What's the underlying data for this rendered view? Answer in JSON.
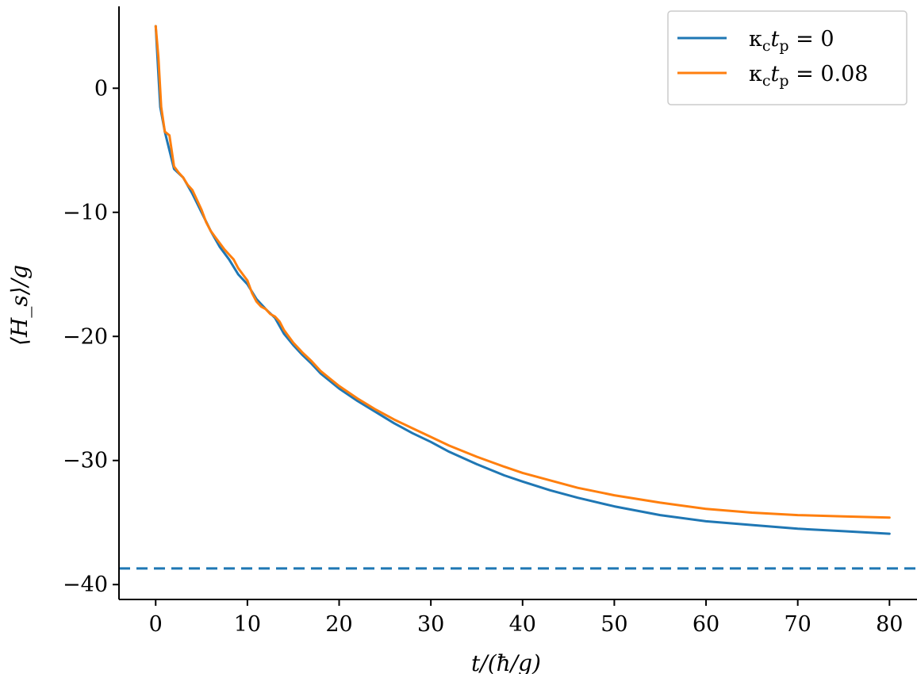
{
  "chart_data": {
    "type": "line",
    "xlabel": "t/(ħ/g)",
    "ylabel": "⟨H_s⟩/g",
    "xlim": [
      -4,
      83
    ],
    "ylim": [
      -41.2,
      6.6
    ],
    "x_ticks": [
      0,
      10,
      20,
      30,
      40,
      50,
      60,
      70,
      80
    ],
    "x_tick_labels": [
      "0",
      "10",
      "20",
      "30",
      "40",
      "50",
      "60",
      "70",
      "80"
    ],
    "y_ticks": [
      0,
      -10,
      -20,
      -30,
      -40
    ],
    "y_tick_labels": [
      "0",
      "−10",
      "−20",
      "−30",
      "−40"
    ],
    "grid": false,
    "legend_position": "top-right",
    "series": [
      {
        "name": "κ_c t_p = 0",
        "name_parts": {
          "prefix": "κ",
          "sub1": "c",
          "mid": "t",
          "sub2": "p",
          "suffix": " = 0"
        },
        "color": "#1f77b4",
        "x": [
          0,
          0.5,
          1,
          2,
          3,
          4,
          5,
          6,
          7,
          8,
          9,
          10,
          11,
          12,
          13,
          14,
          15,
          16,
          17,
          18,
          19,
          20,
          22,
          24,
          26,
          28,
          30,
          32,
          35,
          38,
          40,
          43,
          46,
          50,
          55,
          60,
          65,
          70,
          75,
          80
        ],
        "y": [
          5,
          -1.5,
          -3.5,
          -6.5,
          -7.2,
          -8.5,
          -10,
          -11.5,
          -12.8,
          -13.8,
          -15,
          -15.8,
          -17,
          -17.8,
          -18.5,
          -19.8,
          -20.7,
          -21.5,
          -22.2,
          -23,
          -23.6,
          -24.2,
          -25.2,
          -26.1,
          -27,
          -27.8,
          -28.5,
          -29.3,
          -30.3,
          -31.2,
          -31.7,
          -32.4,
          -33,
          -33.7,
          -34.4,
          -34.9,
          -35.2,
          -35.5,
          -35.7,
          -35.9
        ]
      },
      {
        "name": "κ_c t_p = 0.08",
        "name_parts": {
          "prefix": "κ",
          "sub1": "c",
          "mid": "t",
          "sub2": "p",
          "suffix": " = 0.08"
        },
        "color": "#ff7f0e",
        "x": [
          0,
          0.3,
          0.6,
          1,
          1.5,
          2,
          2.5,
          3,
          3.5,
          4,
          4.5,
          5,
          5.5,
          6,
          6.5,
          7,
          7.5,
          8,
          8.5,
          9,
          9.5,
          10,
          10.5,
          11,
          11.5,
          12,
          12.5,
          13,
          13.5,
          14,
          15,
          16,
          17,
          18,
          19,
          20,
          22,
          24,
          26,
          28,
          30,
          32,
          35,
          38,
          40,
          43,
          46,
          50,
          55,
          60,
          65,
          70,
          75,
          80
        ],
        "y": [
          5,
          2.5,
          -1.5,
          -3.5,
          -3.8,
          -6.3,
          -6.8,
          -7.2,
          -7.8,
          -8.2,
          -9,
          -9.8,
          -10.8,
          -11.5,
          -12,
          -12.5,
          -13,
          -13.4,
          -13.8,
          -14.5,
          -15,
          -15.5,
          -16.5,
          -17.2,
          -17.6,
          -17.8,
          -18.2,
          -18.4,
          -18.8,
          -19.5,
          -20.5,
          -21.3,
          -22,
          -22.8,
          -23.4,
          -24,
          -25,
          -25.9,
          -26.7,
          -27.4,
          -28.1,
          -28.8,
          -29.7,
          -30.5,
          -31,
          -31.6,
          -32.2,
          -32.8,
          -33.4,
          -33.9,
          -34.2,
          -34.4,
          -34.5,
          -34.6
        ]
      }
    ],
    "reference_line": {
      "y": -38.7,
      "style": "dashed",
      "color": "#1f77b4"
    }
  }
}
